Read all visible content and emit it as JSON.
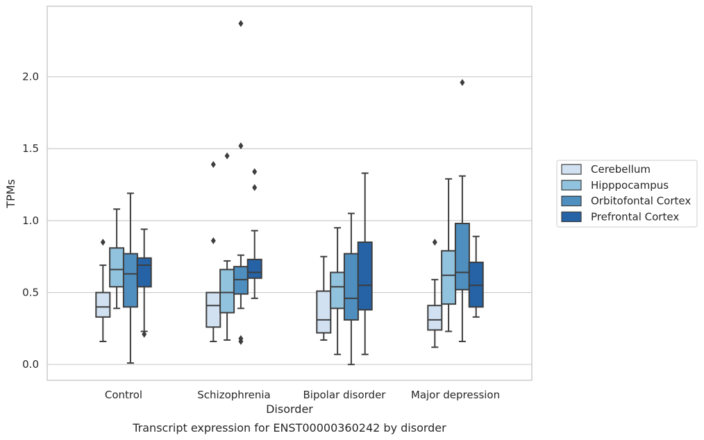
{
  "chart_data": {
    "type": "box",
    "title": "Transcript expression for ENST00000360242 by disorder",
    "xlabel": "Disorder",
    "ylabel": "TPMs",
    "ylim": [
      -0.11,
      2.49
    ],
    "yticks": [
      0.0,
      0.5,
      1.0,
      1.5,
      2.0
    ],
    "ytick_labels": [
      "0.0",
      "0.5",
      "1.0",
      "1.5",
      "2.0"
    ],
    "grid": "horizontal",
    "legend_position": "right",
    "categories": [
      "Control",
      "Schizophrenia",
      "Bipolar disorder",
      "Major depression"
    ],
    "series": [
      {
        "name": "Cerebellum",
        "color": "#d1e1f1",
        "boxes": [
          {
            "whisker_low": 0.16,
            "q1": 0.33,
            "median": 0.4,
            "q3": 0.5,
            "whisker_high": 0.69,
            "outliers": [
              0.85
            ]
          },
          {
            "whisker_low": 0.16,
            "q1": 0.26,
            "median": 0.41,
            "q3": 0.5,
            "whisker_high": 0.5,
            "outliers": [
              0.86,
              1.39
            ]
          },
          {
            "whisker_low": 0.17,
            "q1": 0.22,
            "median": 0.31,
            "q3": 0.51,
            "whisker_high": 0.75,
            "outliers": []
          },
          {
            "whisker_low": 0.12,
            "q1": 0.24,
            "median": 0.31,
            "q3": 0.41,
            "whisker_high": 0.59,
            "outliers": [
              0.85
            ]
          }
        ]
      },
      {
        "name": "Hipppocampus",
        "color": "#92c3de",
        "boxes": [
          {
            "whisker_low": 0.39,
            "q1": 0.54,
            "median": 0.66,
            "q3": 0.81,
            "whisker_high": 1.08,
            "outliers": []
          },
          {
            "whisker_low": 0.17,
            "q1": 0.36,
            "median": 0.5,
            "q3": 0.66,
            "whisker_high": 0.72,
            "outliers": [
              1.45
            ]
          },
          {
            "whisker_low": 0.07,
            "q1": 0.39,
            "median": 0.54,
            "q3": 0.64,
            "whisker_high": 0.95,
            "outliers": []
          },
          {
            "whisker_low": 0.23,
            "q1": 0.42,
            "median": 0.62,
            "q3": 0.79,
            "whisker_high": 1.29,
            "outliers": []
          }
        ]
      },
      {
        "name": "Orbitofontal Cortex",
        "color": "#4f8fc0",
        "boxes": [
          {
            "whisker_low": 0.01,
            "q1": 0.4,
            "median": 0.63,
            "q3": 0.77,
            "whisker_high": 1.19,
            "outliers": []
          },
          {
            "whisker_low": 0.39,
            "q1": 0.49,
            "median": 0.59,
            "q3": 0.68,
            "whisker_high": 0.76,
            "outliers": [
              0.16,
              0.18,
              1.52,
              2.37
            ]
          },
          {
            "whisker_low": 0.0,
            "q1": 0.31,
            "median": 0.46,
            "q3": 0.77,
            "whisker_high": 1.05,
            "outliers": []
          },
          {
            "whisker_low": 0.16,
            "q1": 0.52,
            "median": 0.64,
            "q3": 0.98,
            "whisker_high": 1.31,
            "outliers": [
              1.96
            ]
          }
        ]
      },
      {
        "name": "Prefrontal Cortex",
        "color": "#2563a6",
        "boxes": [
          {
            "whisker_low": 0.23,
            "q1": 0.54,
            "median": 0.69,
            "q3": 0.74,
            "whisker_high": 0.94,
            "outliers": [
              0.21
            ]
          },
          {
            "whisker_low": 0.46,
            "q1": 0.6,
            "median": 0.64,
            "q3": 0.73,
            "whisker_high": 0.93,
            "outliers": [
              1.23,
              1.34
            ]
          },
          {
            "whisker_low": 0.07,
            "q1": 0.38,
            "median": 0.55,
            "q3": 0.85,
            "whisker_high": 1.33,
            "outliers": []
          },
          {
            "whisker_low": 0.33,
            "q1": 0.4,
            "median": 0.55,
            "q3": 0.71,
            "whisker_high": 0.89,
            "outliers": []
          }
        ]
      }
    ],
    "style": {
      "box_edge_color": "#3d3d3d",
      "grid_color": "#cccccc",
      "frame_color": "#cccccc",
      "background": "#ffffff"
    }
  }
}
